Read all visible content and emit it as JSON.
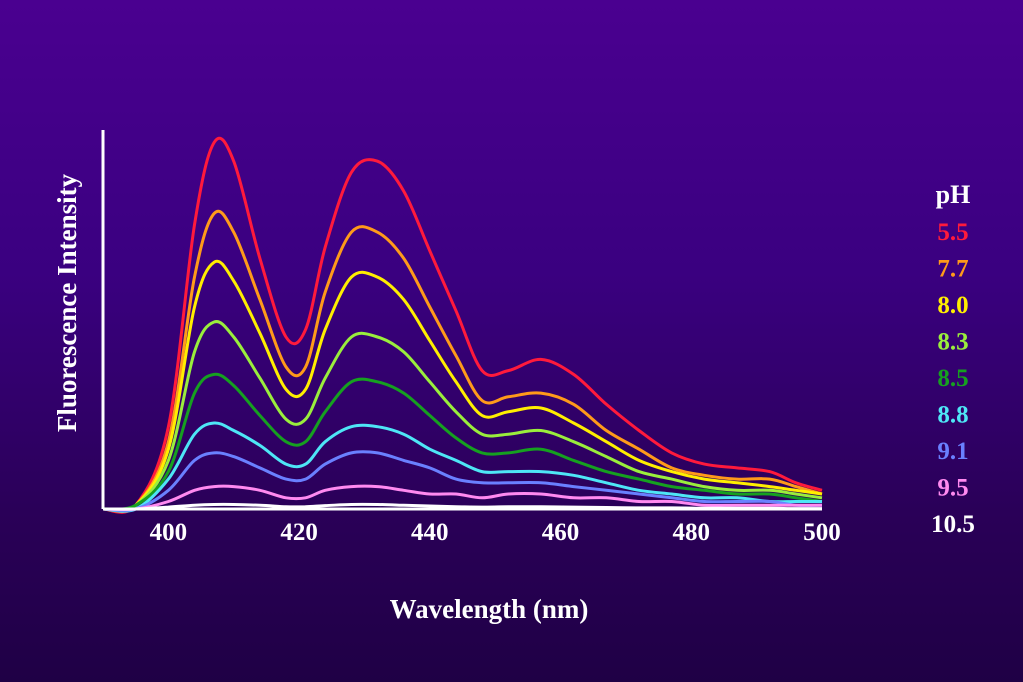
{
  "chart_data": {
    "type": "line",
    "title": "",
    "xlabel": "Wavelength (nm)",
    "ylabel": "Fluorescence Intensity",
    "xlim": [
      390,
      500
    ],
    "ylim": [
      0,
      100
    ],
    "xticks": [
      "400",
      "420",
      "440",
      "460",
      "480",
      "500"
    ],
    "grid": false,
    "legend": {
      "title": "pH",
      "placement": "right"
    },
    "x": [
      390,
      395,
      400,
      404,
      407,
      410,
      414,
      418,
      421,
      424,
      428,
      432,
      436,
      440,
      444,
      448,
      452,
      457,
      462,
      467,
      472,
      477,
      482,
      487,
      492,
      496,
      500
    ],
    "series": [
      {
        "name": "5.5",
        "color": "#ff1a3c",
        "values": [
          0,
          1,
          22,
          76,
          98,
          93,
          67,
          46,
          48,
          70,
          90,
          93,
          85,
          69,
          53,
          37,
          37,
          40,
          36,
          28,
          21,
          15,
          12,
          11,
          10,
          7,
          5
        ]
      },
      {
        "name": "7.7",
        "color": "#ff9a1a",
        "values": [
          0,
          1,
          18,
          62,
          79,
          74,
          56,
          38,
          38,
          58,
          74,
          74,
          67,
          54,
          41,
          29,
          30,
          31,
          28,
          21,
          16,
          11,
          9,
          8,
          8,
          6,
          4
        ]
      },
      {
        "name": "8.0",
        "color": "#ffee00",
        "values": [
          0,
          1,
          16,
          54,
          66,
          61,
          47,
          32,
          32,
          48,
          62,
          62,
          56,
          45,
          34,
          25,
          26,
          27,
          23,
          18,
          13,
          10,
          8,
          7,
          6,
          5,
          4
        ]
      },
      {
        "name": "8.3",
        "color": "#9aee3c",
        "values": [
          0,
          1,
          13,
          42,
          50,
          46,
          35,
          24,
          24,
          35,
          46,
          46,
          42,
          34,
          26,
          20,
          20,
          21,
          18,
          14,
          10,
          8,
          6,
          5,
          5,
          4,
          3
        ]
      },
      {
        "name": "8.5",
        "color": "#16a020",
        "values": [
          0,
          1,
          10,
          31,
          36,
          33,
          25,
          18,
          18,
          26,
          34,
          34,
          31,
          25,
          19,
          15,
          15,
          16,
          13,
          10,
          8,
          6,
          5,
          4,
          4,
          3,
          2
        ]
      },
      {
        "name": "8.8",
        "color": "#4ee6f6",
        "values": [
          0,
          0,
          8,
          20,
          23,
          21,
          17,
          12,
          12,
          18,
          22,
          22,
          20,
          16,
          13,
          10,
          10,
          10,
          9,
          7,
          5,
          4,
          3,
          3,
          2,
          2,
          2
        ]
      },
      {
        "name": "9.1",
        "color": "#6a80ff",
        "values": [
          0,
          0,
          5,
          13,
          15,
          14,
          11,
          8,
          8,
          12,
          15,
          15,
          13,
          11,
          8,
          7,
          7,
          7,
          6,
          5,
          4,
          3,
          2,
          2,
          2,
          1,
          1
        ]
      },
      {
        "name": "9.5",
        "color": "#ff8af0",
        "values": [
          0,
          0,
          2,
          5,
          6,
          6,
          5,
          3,
          3,
          5,
          6,
          6,
          5,
          4,
          4,
          3,
          4,
          4,
          3,
          3,
          2,
          2,
          1,
          1,
          1,
          1,
          1
        ]
      },
      {
        "name": "10.5",
        "color": "#ffffff",
        "values": [
          0,
          0,
          0.5,
          1,
          1.2,
          1.2,
          1,
          0.6,
          0.6,
          0.9,
          1.2,
          1.2,
          1,
          0.8,
          0.6,
          0.5,
          0.6,
          0.6,
          0.5,
          0.4,
          0.3,
          0.3,
          0.2,
          0.2,
          0.2,
          0.1,
          0.1
        ]
      }
    ]
  }
}
